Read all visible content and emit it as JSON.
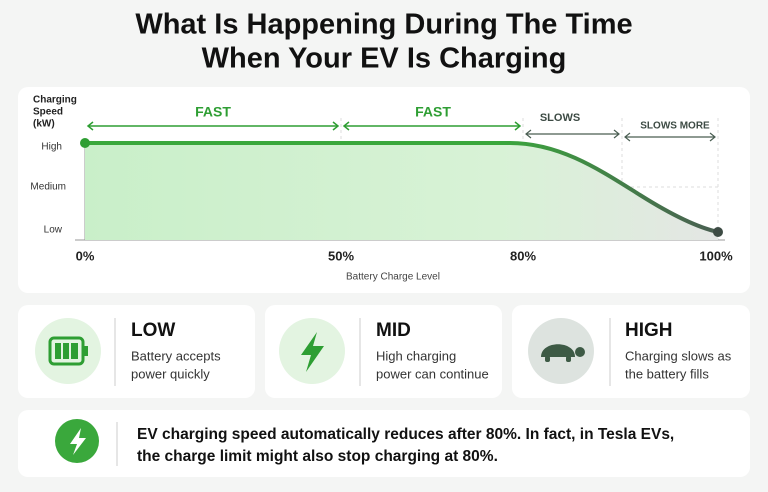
{
  "title": [
    "What Is Happening During The Time",
    "When Your EV Is Charging"
  ],
  "chart": {
    "y_axis_label": [
      "Charging",
      "Speed",
      "(kW)"
    ],
    "y_levels": [
      "High",
      "Medium",
      "Low"
    ],
    "x_ticks": [
      "0%",
      "50%",
      "80%",
      "100%"
    ],
    "x_axis_label": "Battery Charge Level",
    "phases": [
      "FAST",
      "FAST",
      "SLOWS",
      "SLOWS MORE"
    ]
  },
  "cards": [
    {
      "title": "LOW",
      "text": [
        "Battery accepts",
        "power quickly"
      ]
    },
    {
      "title": "MID",
      "text": [
        "High charging",
        "power can continue"
      ]
    },
    {
      "title": "HIGH",
      "text": [
        "Charging slows as",
        "the battery fills"
      ]
    }
  ],
  "note": [
    "EV charging speed automatically reduces after 80%. In fact, in Tesla EVs,",
    "the charge limit might also stop charging at 80%."
  ]
}
